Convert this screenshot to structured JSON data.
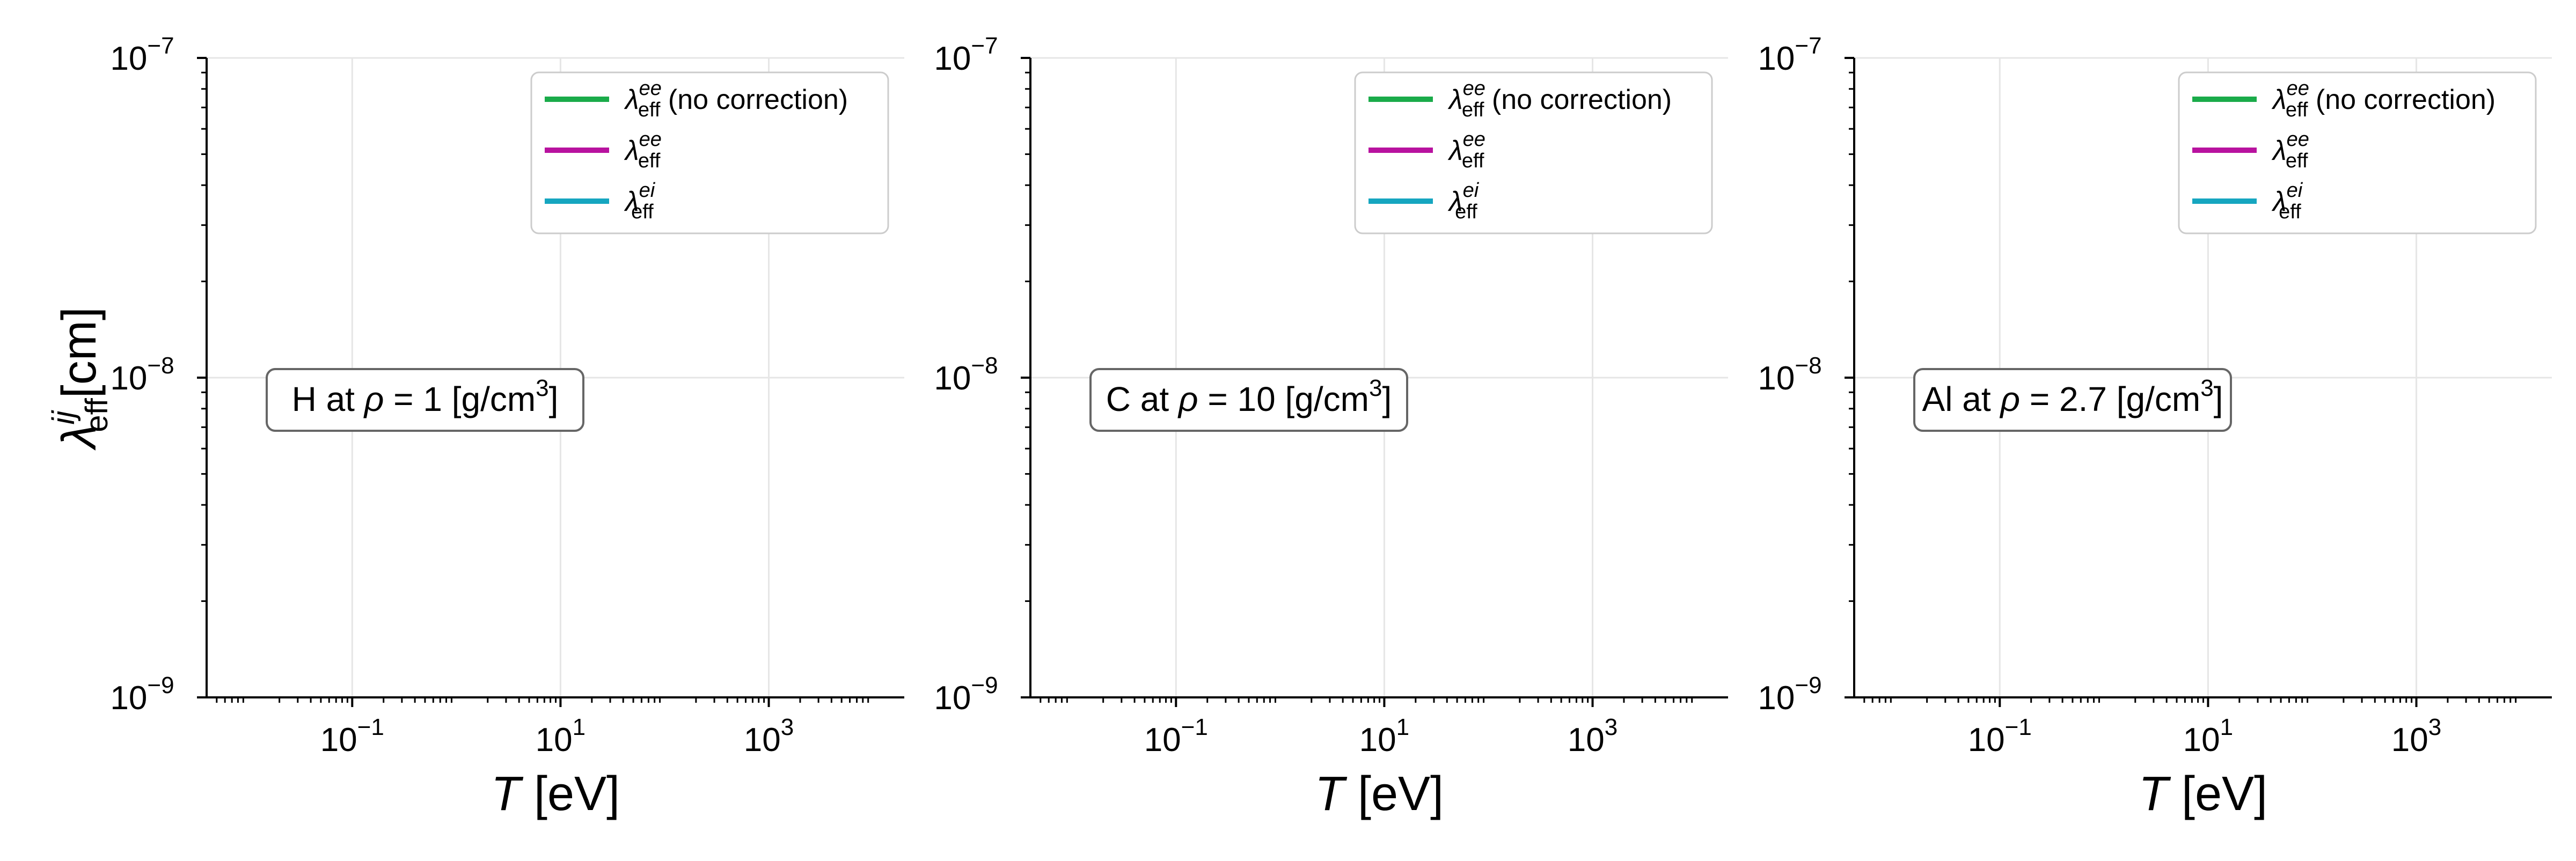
{
  "chart_data": [
    {
      "type": "line",
      "annotation": {
        "element": "H",
        "rho": "1",
        "unit": "[g/cm",
        "unit_exp": "3",
        "unit_close": "]"
      },
      "xlabel": {
        "symbol": "T",
        "unit": "[eV]"
      },
      "ylabel": {
        "symbol": "λ",
        "sub": "eff",
        "sup": "ij",
        "unit": "[cm]"
      },
      "xscale": "log",
      "yscale": "log",
      "xlim": [
        0.004,
        20000
      ],
      "ylim": [
        1e-09,
        1e-07
      ],
      "xticks": [
        {
          "value": 0.1,
          "base": "10",
          "exp": "−1"
        },
        {
          "value": 10,
          "base": "10",
          "exp": "1"
        },
        {
          "value": 1000,
          "base": "10",
          "exp": "3"
        }
      ],
      "yticks": [
        {
          "value": 1e-09,
          "base": "10",
          "exp": "−9"
        },
        {
          "value": 1e-08,
          "base": "10",
          "exp": "−8"
        },
        {
          "value": 1e-07,
          "base": "10",
          "exp": "−7"
        }
      ],
      "grid": true,
      "legend_position": "top-right",
      "series": [
        {
          "name": "λ",
          "sub": "eff",
          "sup": "ee",
          "suffix": "(no correction)",
          "color": "#1aab4a",
          "points": []
        },
        {
          "name": "λ",
          "sub": "eff",
          "sup": "ee",
          "suffix": "",
          "color": "#b8129f",
          "points": []
        },
        {
          "name": "λ",
          "sub": "eff",
          "sup": "ei",
          "suffix": "",
          "color": "#16a6c0",
          "points": []
        }
      ]
    },
    {
      "type": "line",
      "annotation": {
        "element": "C",
        "rho": "10",
        "unit": "[g/cm",
        "unit_exp": "3",
        "unit_close": "]"
      },
      "xlabel": {
        "symbol": "T",
        "unit": "[eV]"
      },
      "ylabel": null,
      "xscale": "log",
      "yscale": "log",
      "xlim": [
        0.004,
        20000
      ],
      "ylim": [
        1e-09,
        1e-07
      ],
      "xticks": [
        {
          "value": 0.1,
          "base": "10",
          "exp": "−1"
        },
        {
          "value": 10,
          "base": "10",
          "exp": "1"
        },
        {
          "value": 1000,
          "base": "10",
          "exp": "3"
        }
      ],
      "yticks": [
        {
          "value": 1e-09,
          "base": "10",
          "exp": "−9"
        },
        {
          "value": 1e-08,
          "base": "10",
          "exp": "−8"
        },
        {
          "value": 1e-07,
          "base": "10",
          "exp": "−7"
        }
      ],
      "grid": true,
      "legend_position": "top-right",
      "series": [
        {
          "name": "λ",
          "sub": "eff",
          "sup": "ee",
          "suffix": "(no correction)",
          "color": "#1aab4a",
          "points": []
        },
        {
          "name": "λ",
          "sub": "eff",
          "sup": "ee",
          "suffix": "",
          "color": "#b8129f",
          "points": []
        },
        {
          "name": "λ",
          "sub": "eff",
          "sup": "ei",
          "suffix": "",
          "color": "#16a6c0",
          "points": []
        }
      ]
    },
    {
      "type": "line",
      "annotation": {
        "element": "Al",
        "rho": "2.7",
        "unit": "[g/cm",
        "unit_exp": "3",
        "unit_close": "]"
      },
      "xlabel": {
        "symbol": "T",
        "unit": "[eV]"
      },
      "ylabel": null,
      "xscale": "log",
      "yscale": "log",
      "xlim": [
        0.004,
        20000
      ],
      "ylim": [
        1e-09,
        1e-07
      ],
      "xticks": [
        {
          "value": 0.1,
          "base": "10",
          "exp": "−1"
        },
        {
          "value": 10,
          "base": "10",
          "exp": "1"
        },
        {
          "value": 1000,
          "base": "10",
          "exp": "3"
        }
      ],
      "yticks": [
        {
          "value": 1e-09,
          "base": "10",
          "exp": "−9"
        },
        {
          "value": 1e-08,
          "base": "10",
          "exp": "−8"
        },
        {
          "value": 1e-07,
          "base": "10",
          "exp": "−7"
        }
      ],
      "grid": true,
      "legend_position": "top-right",
      "series": [
        {
          "name": "λ",
          "sub": "eff",
          "sup": "ee",
          "suffix": "(no correction)",
          "color": "#1aab4a",
          "points": []
        },
        {
          "name": "λ",
          "sub": "eff",
          "sup": "ee",
          "suffix": "",
          "color": "#b8129f",
          "points": []
        },
        {
          "name": "λ",
          "sub": "eff",
          "sup": "ei",
          "suffix": "",
          "color": "#16a6c0",
          "points": []
        }
      ]
    }
  ]
}
